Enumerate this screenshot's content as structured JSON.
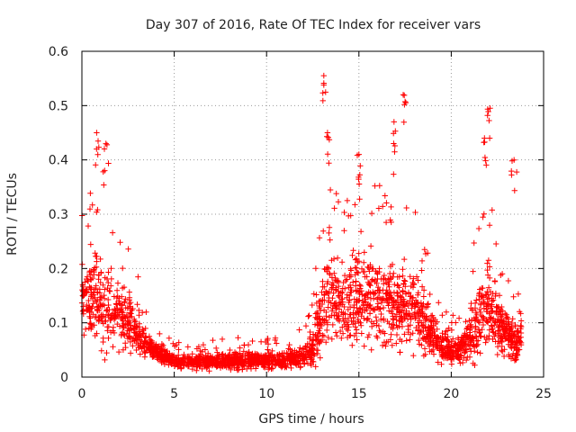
{
  "chart_data": {
    "type": "scatter",
    "title": "Day 307 of 2016, Rate Of TEC Index for receiver vars",
    "xlabel": "GPS time / hours",
    "ylabel": "ROTI / TECUs",
    "xlim": [
      0,
      25
    ],
    "ylim": [
      0,
      0.6
    ],
    "x_ticks": [
      0,
      5,
      10,
      15,
      20,
      25
    ],
    "y_ticks": [
      0,
      0.1,
      0.2,
      0.3,
      0.4,
      0.5,
      0.6
    ],
    "x_tick_labels": [
      "0",
      "5",
      "10",
      "15",
      "20",
      "25"
    ],
    "y_tick_labels": [
      "0",
      "0.1",
      "0.2",
      "0.3",
      "0.4",
      "0.5",
      "0.6"
    ],
    "grid": true,
    "marker": "+",
    "color": "#ff0000",
    "profile_hours": [
      0,
      0.5,
      1,
      1.5,
      2,
      2.5,
      3,
      3.5,
      4,
      5,
      6,
      7,
      8,
      9,
      10,
      11,
      12,
      12.5,
      13,
      13.5,
      14,
      15,
      16,
      17,
      18,
      19,
      19.5,
      20,
      20.5,
      21,
      21.5,
      22,
      22.5,
      23,
      23.5,
      23.8
    ],
    "profile_median_roti": [
      0.13,
      0.14,
      0.13,
      0.12,
      0.11,
      0.1,
      0.08,
      0.06,
      0.045,
      0.03,
      0.028,
      0.028,
      0.03,
      0.03,
      0.03,
      0.032,
      0.035,
      0.05,
      0.12,
      0.15,
      0.13,
      0.14,
      0.13,
      0.14,
      0.12,
      0.08,
      0.05,
      0.045,
      0.05,
      0.07,
      0.1,
      0.12,
      0.1,
      0.08,
      0.06,
      0.08
    ],
    "profile_spread_roti": [
      0.08,
      0.1,
      0.12,
      0.1,
      0.09,
      0.07,
      0.05,
      0.035,
      0.025,
      0.018,
      0.018,
      0.018,
      0.02,
      0.02,
      0.02,
      0.022,
      0.025,
      0.05,
      0.1,
      0.11,
      0.1,
      0.11,
      0.1,
      0.11,
      0.1,
      0.06,
      0.04,
      0.03,
      0.035,
      0.07,
      0.1,
      0.11,
      0.09,
      0.06,
      0.05,
      0.06
    ],
    "peaks": [
      {
        "x": 0.8,
        "y": 0.45
      },
      {
        "x": 1.3,
        "y": 0.43
      },
      {
        "x": 13.1,
        "y": 0.555
      },
      {
        "x": 13.3,
        "y": 0.45
      },
      {
        "x": 15.0,
        "y": 0.41
      },
      {
        "x": 16.9,
        "y": 0.47
      },
      {
        "x": 17.4,
        "y": 0.52
      },
      {
        "x": 21.8,
        "y": 0.44
      },
      {
        "x": 22.1,
        "y": 0.495
      },
      {
        "x": 23.4,
        "y": 0.4
      }
    ]
  }
}
